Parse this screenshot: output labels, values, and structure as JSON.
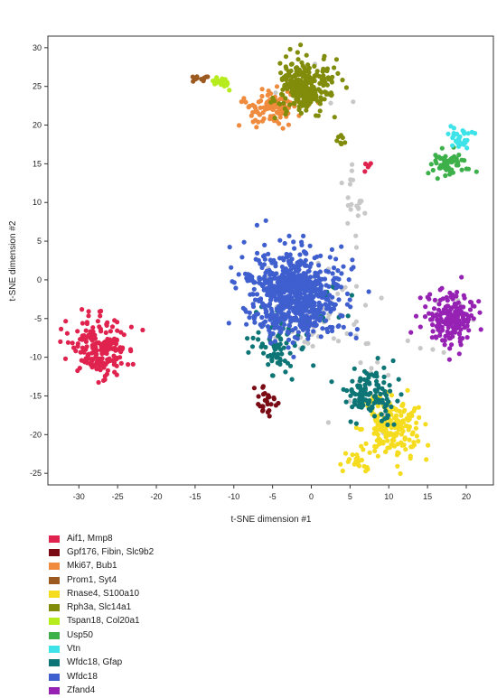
{
  "chart_data": {
    "type": "scatter",
    "title": "",
    "xlabel": "t-SNE dimension #1",
    "ylabel": "t-SNE dimension #2",
    "xlim": [
      -34,
      23.5
    ],
    "ylim": [
      -26.5,
      31.5
    ],
    "xticks": [
      -30,
      -25,
      -20,
      -15,
      -10,
      -5,
      0,
      5,
      10,
      15,
      20
    ],
    "yticks": [
      -25,
      -20,
      -15,
      -10,
      -5,
      0,
      5,
      10,
      15,
      20,
      25,
      30
    ],
    "legend_position": "bottom-left",
    "series": [
      {
        "name": "Aif1, Mmp8",
        "color": "#e0234e",
        "clusters": [
          {
            "n": 190,
            "cx": -27.5,
            "cy": -8.8,
            "sx": 2.6,
            "sy": 2.4
          },
          {
            "n": 5,
            "cx": 7.4,
            "cy": 14.6,
            "sx": 0.6,
            "sy": 0.4
          }
        ]
      },
      {
        "name": "Gpf176, Fibin, Slc9b2",
        "color": "#7a0a14",
        "clusters": [
          {
            "n": 26,
            "cx": -5.8,
            "cy": -16.0,
            "sx": 0.8,
            "sy": 1.6
          }
        ]
      },
      {
        "name": "Mki67, Bub1",
        "color": "#f08a3c",
        "clusters": [
          {
            "n": 110,
            "cx": -5.0,
            "cy": 22.3,
            "sx": 2.7,
            "sy": 1.5
          }
        ]
      },
      {
        "name": "Prom1, Syt4",
        "color": "#9c5a20",
        "clusters": [
          {
            "n": 14,
            "cx": -14.3,
            "cy": 25.9,
            "sx": 0.9,
            "sy": 0.3
          }
        ]
      },
      {
        "name": "Rnase4, S100a10",
        "color": "#f5dc1e",
        "clusters": [
          {
            "n": 190,
            "cx": 10.2,
            "cy": -19.0,
            "sx": 2.6,
            "sy": 2.8
          },
          {
            "n": 20,
            "cx": 5.8,
            "cy": -23.6,
            "sx": 1.3,
            "sy": 0.6
          }
        ]
      },
      {
        "name": "Rph3a, Slc14a1",
        "color": "#808c0a",
        "clusters": [
          {
            "n": 270,
            "cx": -1.0,
            "cy": 25.0,
            "sx": 2.3,
            "sy": 2.3
          },
          {
            "n": 8,
            "cx": 3.8,
            "cy": 18.0,
            "sx": 0.5,
            "sy": 0.9
          }
        ]
      },
      {
        "name": "Tspan18, Col20a1",
        "color": "#b6ec1e",
        "clusters": [
          {
            "n": 22,
            "cx": -11.6,
            "cy": 25.6,
            "sx": 0.8,
            "sy": 0.5
          }
        ]
      },
      {
        "name": "Usp50",
        "color": "#3db04a",
        "clusters": [
          {
            "n": 60,
            "cx": 17.8,
            "cy": 15.0,
            "sx": 1.5,
            "sy": 1.0
          }
        ]
      },
      {
        "name": "Vtn",
        "color": "#3ee3ea",
        "clusters": [
          {
            "n": 30,
            "cx": 19.2,
            "cy": 18.2,
            "sx": 1.2,
            "sy": 0.9
          }
        ]
      },
      {
        "name": "Wfdc18, Gfap",
        "color": "#0d7575",
        "clusters": [
          {
            "n": 130,
            "cx": 7.8,
            "cy": -15.0,
            "sx": 2.2,
            "sy": 2.3
          },
          {
            "n": 70,
            "cx": -4.3,
            "cy": -8.5,
            "sx": 2.3,
            "sy": 2.8
          },
          {
            "n": 20,
            "cx": 1.0,
            "cy": -3.0,
            "sx": 3.0,
            "sy": 3.5
          }
        ]
      },
      {
        "name": "Wfdc18",
        "color": "#3f5fcf",
        "clusters": [
          {
            "n": 720,
            "cx": -2.2,
            "cy": -2.0,
            "sx": 4.1,
            "sy": 3.7
          }
        ]
      },
      {
        "name": "Zfand4",
        "color": "#9622b4",
        "clusters": [
          {
            "n": 190,
            "cx": 18.3,
            "cy": -5.2,
            "sx": 2.1,
            "sy": 2.2
          }
        ]
      }
    ],
    "unlabeled": {
      "color": "#c8c8c8",
      "clusters": [
        {
          "n": 70,
          "cx": 0.0,
          "cy": -4.0,
          "sx": 5.0,
          "sy": 4.5
        },
        {
          "n": 20,
          "cx": 5.5,
          "cy": 10.5,
          "sx": 0.8,
          "sy": 3.0
        },
        {
          "n": 15,
          "cx": 8.0,
          "cy": -12.0,
          "sx": 4.0,
          "sy": 4.0
        },
        {
          "n": 10,
          "cx": 17.0,
          "cy": -6.0,
          "sx": 2.5,
          "sy": 3.0
        },
        {
          "n": 6,
          "cx": 0.0,
          "cy": 25.0,
          "sx": 6.0,
          "sy": 3.0
        }
      ]
    }
  }
}
